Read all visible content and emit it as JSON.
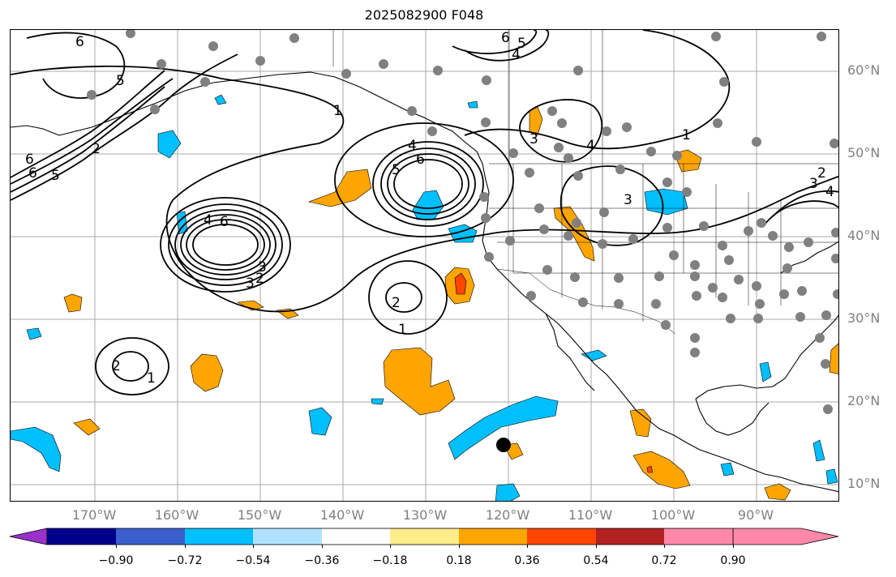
{
  "title": "2025082900 F048",
  "latitude_labels": [
    "60°N",
    "50°N",
    "40°N",
    "30°N",
    "20°N",
    "10°N"
  ],
  "longitude_labels": [
    "170°W",
    "160°W",
    "150°W",
    "140°W",
    "130°W",
    "120°W",
    "110°W",
    "100°W",
    "90°W"
  ],
  "colorbar": {
    "tick_labels": [
      "−0.90",
      "−0.72",
      "−0.54",
      "−0.36",
      "−0.18",
      "0.18",
      "0.36",
      "0.54",
      "0.72",
      "0.90"
    ],
    "colors": [
      "#9932CC",
      "#00008B",
      "#3A5FCD",
      "#00BFFF",
      "#B0E2FF",
      "#FFFFFF",
      "#FFEC8B",
      "#FFA500",
      "#FF4500",
      "#B22222",
      "#FF88AA"
    ]
  },
  "contour_labels": [
    "6",
    "5",
    "6",
    "5",
    "4",
    "2",
    "6",
    "3",
    "1",
    "4",
    "5",
    "6",
    "4",
    "6",
    "3",
    "2",
    "2",
    "1",
    "2",
    "1",
    "6",
    "5",
    "4",
    "3",
    "4",
    "3",
    "1",
    "3",
    "2"
  ],
  "colors": {
    "grid": "#aaaaaa",
    "coast": "#000000",
    "dots": "#808080",
    "positive": "#FFA500",
    "strong_positive": "#FF4500",
    "negative": "#00BFFF"
  }
}
